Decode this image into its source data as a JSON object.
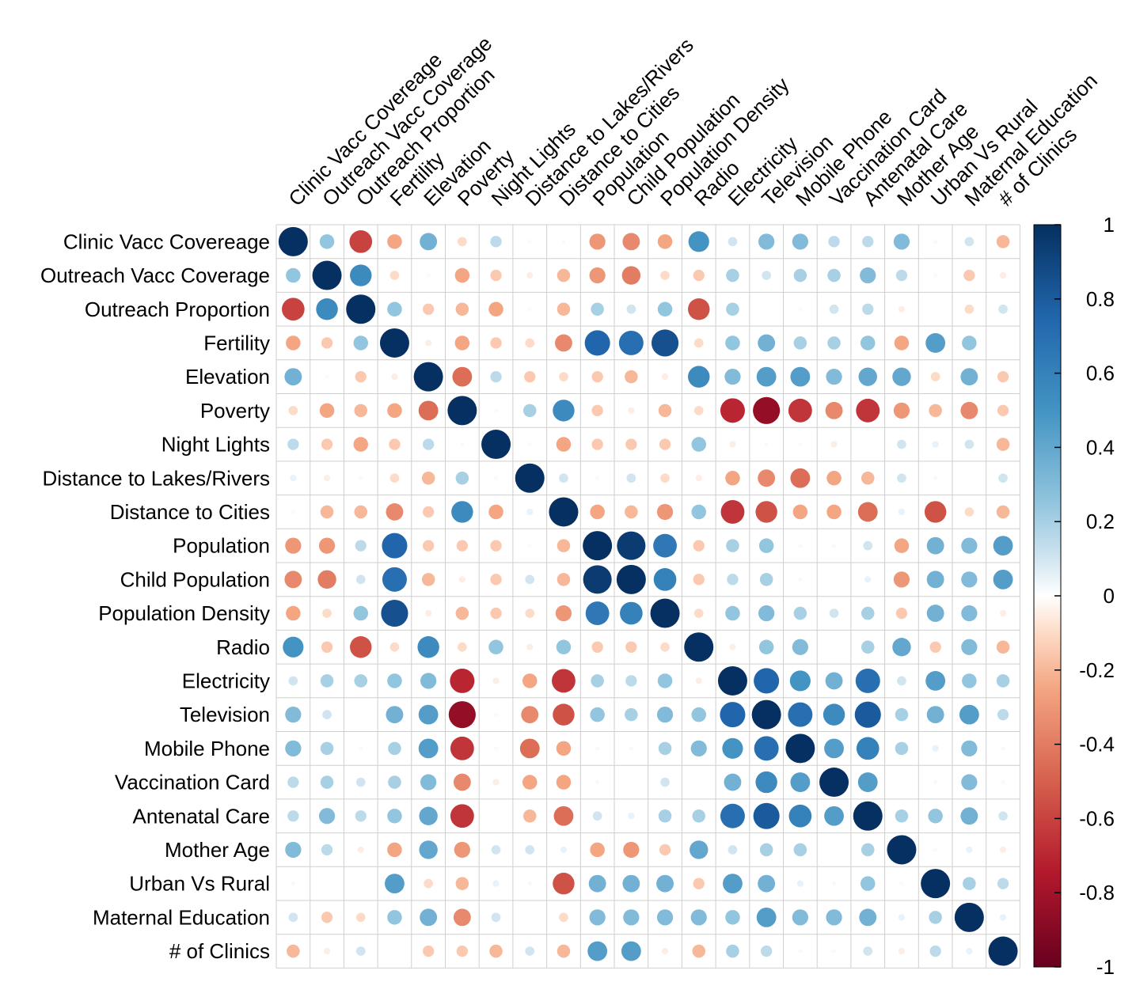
{
  "chart_data": {
    "type": "heatmap",
    "variant": "correlation-circle-matrix",
    "title": "",
    "variables": [
      "Clinic Vacc Covereage",
      "Outreach Vacc Coverage",
      "Outreach Proportion",
      "Fertility",
      "Elevation",
      "Poverty",
      "Night Lights",
      "Distance to Lakes/Rivers",
      "Distance to Cities",
      "Population",
      "Child Population",
      "Population Density",
      "Radio",
      "Electricity",
      "Television",
      "Mobile Phone",
      "Vaccination Card",
      "Antenatal Care",
      "Mother Age",
      "Urban Vs Rural",
      "Maternal Education",
      "# of Clinics"
    ],
    "matrix": [
      [
        1.0,
        0.25,
        -0.6,
        -0.25,
        0.35,
        -0.1,
        0.15,
        -0.02,
        -0.02,
        -0.3,
        -0.35,
        -0.25,
        0.5,
        0.1,
        0.3,
        0.3,
        0.15,
        0.15,
        0.3,
        0.02,
        0.1,
        -0.2
      ],
      [
        0.25,
        1.0,
        0.55,
        -0.1,
        -0.02,
        -0.25,
        -0.15,
        -0.05,
        -0.2,
        -0.3,
        -0.4,
        -0.1,
        -0.15,
        0.2,
        0.1,
        0.2,
        0.2,
        0.3,
        0.15,
        -0.02,
        -0.15,
        -0.05
      ],
      [
        -0.6,
        0.55,
        1.0,
        0.25,
        -0.15,
        -0.2,
        -0.25,
        -0.02,
        -0.2,
        0.2,
        0.1,
        0.25,
        -0.55,
        0.2,
        0.0,
        -0.02,
        0.1,
        0.15,
        -0.05,
        0.0,
        -0.1,
        0.1
      ],
      [
        -0.25,
        -0.15,
        0.25,
        1.0,
        -0.05,
        -0.25,
        -0.15,
        -0.1,
        -0.35,
        0.75,
        0.7,
        0.85,
        -0.1,
        0.25,
        0.35,
        0.2,
        0.2,
        0.25,
        -0.25,
        0.45,
        0.25,
        0.0
      ],
      [
        0.35,
        -0.02,
        -0.15,
        -0.05,
        1.0,
        -0.45,
        0.15,
        -0.15,
        -0.1,
        -0.15,
        -0.2,
        -0.05,
        0.55,
        0.3,
        0.45,
        0.45,
        0.3,
        0.4,
        0.4,
        -0.1,
        0.35,
        -0.15
      ],
      [
        -0.1,
        -0.25,
        -0.2,
        -0.25,
        -0.45,
        1.0,
        0.02,
        0.2,
        0.55,
        -0.15,
        -0.05,
        -0.2,
        -0.1,
        -0.7,
        -0.85,
        -0.65,
        -0.35,
        -0.65,
        -0.3,
        -0.2,
        -0.35,
        -0.15
      ],
      [
        0.15,
        -0.15,
        -0.25,
        -0.15,
        0.15,
        0.02,
        1.0,
        -0.02,
        -0.25,
        -0.15,
        -0.15,
        -0.15,
        0.25,
        -0.05,
        -0.02,
        -0.02,
        -0.05,
        0.0,
        0.1,
        0.05,
        0.1,
        -0.2
      ],
      [
        0.05,
        -0.05,
        -0.02,
        -0.1,
        -0.2,
        0.2,
        -0.02,
        1.0,
        0.1,
        -0.02,
        0.1,
        -0.1,
        -0.05,
        -0.25,
        -0.35,
        -0.45,
        -0.25,
        -0.2,
        0.1,
        0.02,
        0.0,
        0.1
      ],
      [
        -0.02,
        -0.2,
        -0.2,
        -0.35,
        -0.15,
        0.55,
        -0.25,
        0.05,
        1.0,
        -0.25,
        -0.2,
        -0.3,
        0.25,
        -0.65,
        -0.55,
        -0.25,
        -0.25,
        -0.45,
        0.05,
        -0.55,
        -0.1,
        -0.2
      ],
      [
        -0.3,
        -0.3,
        0.15,
        0.75,
        -0.15,
        -0.15,
        -0.15,
        -0.02,
        -0.2,
        1.0,
        0.95,
        0.65,
        -0.15,
        0.2,
        0.25,
        0.02,
        0.02,
        0.1,
        -0.25,
        0.35,
        0.3,
        0.45
      ],
      [
        -0.35,
        -0.4,
        0.1,
        0.7,
        -0.2,
        -0.05,
        -0.15,
        0.1,
        -0.2,
        0.95,
        1.0,
        0.6,
        -0.15,
        0.15,
        0.2,
        0.02,
        0.0,
        0.05,
        -0.3,
        0.35,
        0.3,
        0.45
      ],
      [
        -0.25,
        -0.1,
        0.25,
        0.85,
        -0.05,
        -0.2,
        -0.15,
        -0.1,
        -0.3,
        0.65,
        0.6,
        1.0,
        -0.1,
        0.25,
        0.3,
        0.2,
        0.1,
        0.2,
        -0.15,
        0.35,
        0.3,
        -0.05
      ],
      [
        0.5,
        -0.15,
        -0.55,
        -0.1,
        0.55,
        -0.1,
        0.25,
        -0.05,
        0.25,
        -0.15,
        -0.15,
        -0.1,
        1.0,
        -0.05,
        0.25,
        0.3,
        0.0,
        0.2,
        0.4,
        -0.15,
        0.3,
        -0.2
      ],
      [
        0.1,
        0.2,
        0.2,
        0.25,
        0.3,
        -0.7,
        -0.05,
        -0.25,
        -0.65,
        0.2,
        0.15,
        0.25,
        -0.05,
        1.0,
        0.75,
        0.5,
        0.35,
        0.7,
        0.1,
        0.45,
        0.25,
        0.2
      ],
      [
        0.3,
        0.1,
        0.0,
        0.35,
        0.45,
        -0.85,
        -0.02,
        -0.35,
        -0.55,
        0.25,
        0.2,
        0.3,
        0.25,
        0.75,
        1.0,
        0.7,
        0.55,
        0.8,
        0.2,
        0.35,
        0.45,
        0.15
      ],
      [
        0.3,
        0.2,
        -0.02,
        0.2,
        0.45,
        -0.65,
        -0.02,
        -0.45,
        -0.25,
        0.02,
        0.02,
        0.2,
        0.3,
        0.5,
        0.7,
        1.0,
        0.45,
        0.6,
        0.2,
        0.05,
        0.3,
        0.02
      ],
      [
        0.15,
        0.2,
        0.1,
        0.2,
        0.3,
        -0.35,
        -0.05,
        -0.25,
        -0.25,
        0.02,
        0.0,
        0.1,
        0.0,
        0.35,
        0.55,
        0.45,
        1.0,
        0.45,
        0.0,
        0.02,
        0.3,
        -0.02
      ],
      [
        0.15,
        0.3,
        0.15,
        0.25,
        0.4,
        -0.65,
        0.0,
        -0.2,
        -0.45,
        0.1,
        0.05,
        0.2,
        0.2,
        0.7,
        0.8,
        0.6,
        0.45,
        1.0,
        0.2,
        0.25,
        0.35,
        0.1
      ],
      [
        0.3,
        0.15,
        -0.05,
        -0.25,
        0.4,
        -0.3,
        0.1,
        0.1,
        0.05,
        -0.25,
        -0.3,
        -0.15,
        0.4,
        0.1,
        0.2,
        0.2,
        0.0,
        0.2,
        1.0,
        -0.02,
        0.05,
        -0.05
      ],
      [
        0.02,
        0.0,
        0.0,
        0.45,
        -0.1,
        -0.2,
        0.05,
        0.02,
        -0.55,
        0.35,
        0.35,
        0.35,
        -0.15,
        0.45,
        0.35,
        0.05,
        0.02,
        0.25,
        -0.02,
        1.0,
        0.2,
        0.15
      ],
      [
        0.1,
        -0.15,
        -0.1,
        0.25,
        0.35,
        -0.35,
        0.1,
        0.0,
        -0.1,
        0.3,
        0.3,
        0.3,
        0.3,
        0.25,
        0.45,
        0.3,
        0.3,
        0.35,
        0.05,
        0.2,
        1.0,
        0.05
      ],
      [
        -0.2,
        -0.05,
        0.1,
        0.0,
        -0.15,
        -0.15,
        -0.2,
        0.1,
        -0.2,
        0.45,
        0.45,
        -0.05,
        -0.2,
        0.2,
        0.15,
        0.02,
        -0.02,
        0.1,
        -0.05,
        0.15,
        0.05,
        1.0
      ]
    ],
    "color_scale": {
      "min": -1,
      "max": 1,
      "ticks": [
        1,
        0.8,
        0.6,
        0.4,
        0.2,
        0,
        -0.2,
        -0.4,
        -0.6,
        -0.8,
        -1
      ],
      "tick_labels": [
        "1",
        "0.8",
        "0.6",
        "0.4",
        "0.2",
        "0",
        "-0.2",
        "-0.4",
        "-0.6",
        "-0.8",
        "-1"
      ],
      "stops": [
        {
          "value": -1.0,
          "color": "#67001F"
        },
        {
          "value": -0.75,
          "color": "#B2182B"
        },
        {
          "value": -0.5,
          "color": "#D6604D"
        },
        {
          "value": -0.25,
          "color": "#F4A582"
        },
        {
          "value": -0.1,
          "color": "#FDDBC7"
        },
        {
          "value": 0.0,
          "color": "#FFFFFF"
        },
        {
          "value": 0.1,
          "color": "#D1E5F0"
        },
        {
          "value": 0.25,
          "color": "#92C5DE"
        },
        {
          "value": 0.5,
          "color": "#4393C3"
        },
        {
          "value": 0.75,
          "color": "#2166AC"
        },
        {
          "value": 1.0,
          "color": "#053061"
        }
      ]
    },
    "grid": true,
    "legend": "right"
  }
}
